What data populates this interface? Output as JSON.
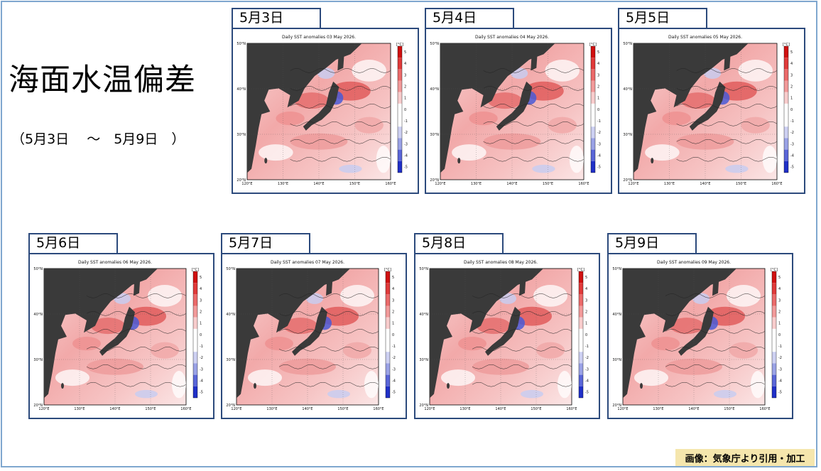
{
  "slide": {
    "title": "海面水温偏差",
    "date_range": "（5月3日　 ～　5月9日　）",
    "credit": "画像：気象庁より引用・加工"
  },
  "colors": {
    "frame": "#7fa7cf",
    "panel_border": "#2c4a7c",
    "credit_bg": "#f5e6ad"
  },
  "maps": [
    {
      "tab_label": "5月3日",
      "map_title": "Daily SST anomalies 03 May 2026."
    },
    {
      "tab_label": "5月4日",
      "map_title": "Daily SST anomalies 04 May 2026."
    },
    {
      "tab_label": "5月5日",
      "map_title": "Daily SST anomalies 05 May 2026."
    },
    {
      "tab_label": "5月6日",
      "map_title": "Daily SST anomalies 06 May 2026."
    },
    {
      "tab_label": "5月7日",
      "map_title": "Daily SST anomalies 07 May 2026."
    },
    {
      "tab_label": "5月8日",
      "map_title": "Daily SST anomalies 08 May 2026."
    },
    {
      "tab_label": "5月9日",
      "map_title": "Daily SST anomalies 09 May 2026."
    }
  ],
  "map_axes": {
    "lat_labels": [
      "50°N",
      "40°N",
      "30°N",
      "20°N"
    ],
    "lon_labels": [
      "120°E",
      "130°E",
      "140°E",
      "150°E",
      "160°E"
    ],
    "colorbar_unit": "[°C]",
    "colorbar_ticks": [
      "5",
      "4",
      "3",
      "2",
      "1",
      "0",
      "-1",
      "-2",
      "-3",
      "-4",
      "-5"
    ]
  }
}
